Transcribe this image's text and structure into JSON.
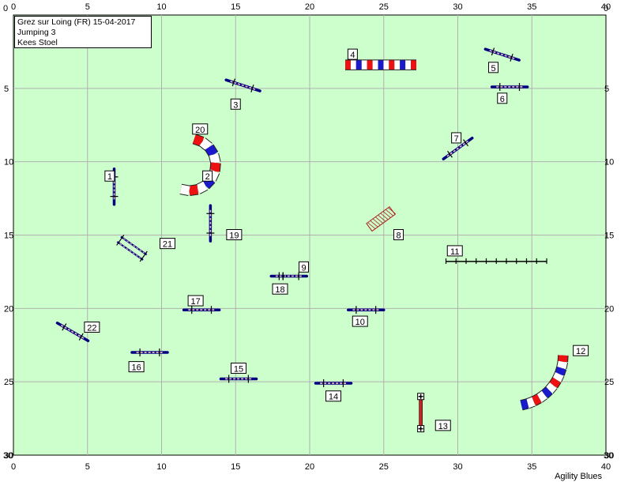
{
  "header": {
    "lines": [
      "Grez sur Loing (FR) 15-04-2017",
      "Jumping 3",
      "Kees Stoel"
    ]
  },
  "footer": {
    "brand": "Agility Blues"
  },
  "axes": {
    "x_ticks": [
      "0",
      "5",
      "10",
      "15",
      "20",
      "25",
      "30",
      "35",
      "40"
    ],
    "y_ticks": [
      "",
      "5",
      "10",
      "15",
      "20",
      "25",
      "30"
    ],
    "x_range": [
      0,
      40
    ],
    "y_range": [
      0,
      30
    ],
    "grid": true
  },
  "colors": {
    "field": "#ccffcc",
    "grid": "#b0b0b0",
    "bar": "#000080",
    "tunnel_red": "#ee1111",
    "tunnel_white": "#ffffff",
    "tunnel_blue": "#1a1acc",
    "pole_red": "#cc2222"
  },
  "obstacles": [
    {
      "num": "1",
      "type": "jump",
      "x": 6.8,
      "y": 11.7,
      "angle": 90,
      "length": 2.4,
      "label": [
        6.5,
        11.0
      ]
    },
    {
      "num": "2",
      "type": "tunnel-end",
      "x": 13,
      "y": 11.3,
      "label": [
        13.1,
        11.0
      ]
    },
    {
      "num": "3",
      "type": "jump",
      "x": 15.5,
      "y": 4.8,
      "angle": 18,
      "length": 2.4,
      "label": [
        15.0,
        6.1
      ]
    },
    {
      "num": "4",
      "type": "tunnel",
      "x1": 22.4,
      "y1": 3.4,
      "x2": 27.2,
      "y2": 3.4,
      "label": [
        22.9,
        2.7
      ]
    },
    {
      "num": "5",
      "type": "jump",
      "x": 33,
      "y": 2.7,
      "angle": 18,
      "length": 2.4,
      "label": [
        32.4,
        3.6
      ]
    },
    {
      "num": "6",
      "type": "jump",
      "x": 33.5,
      "y": 4.9,
      "angle": 0,
      "length": 2.4,
      "label": [
        33.0,
        5.7
      ]
    },
    {
      "num": "7",
      "type": "jump",
      "x": 30,
      "y": 9.1,
      "angle": -36,
      "length": 2.4,
      "label": [
        29.9,
        8.4
      ]
    },
    {
      "num": "8",
      "type": "tire",
      "x": 24.8,
      "y": 13.9,
      "angle": -36,
      "label": [
        26.0,
        15.0
      ]
    },
    {
      "num": "9",
      "type": "jump",
      "x": 18.6,
      "y": 17.8,
      "angle": 0,
      "length": 2.4,
      "label": [
        19.6,
        17.2
      ]
    },
    {
      "num": "10",
      "type": "jump",
      "x": 23.8,
      "y": 20.1,
      "angle": 0,
      "length": 2.4,
      "label": [
        23.4,
        20.9
      ]
    },
    {
      "num": "11",
      "type": "longjump",
      "x1": 29.2,
      "y1": 16.8,
      "x2": 36,
      "y2": 16.8,
      "label": [
        29.8,
        16.1
      ]
    },
    {
      "num": "12",
      "type": "tunnel-curve",
      "label": [
        38.3,
        22.9
      ]
    },
    {
      "num": "13",
      "type": "wall",
      "x1": 27.5,
      "y1": 26.0,
      "x2": 27.5,
      "y2": 28.2,
      "label": [
        29.0,
        28.0
      ]
    },
    {
      "num": "14",
      "type": "jump",
      "x": 21.6,
      "y": 25.1,
      "angle": 0,
      "length": 2.4,
      "label": [
        21.6,
        26.0
      ]
    },
    {
      "num": "15",
      "type": "jump",
      "x": 15.2,
      "y": 24.8,
      "angle": 0,
      "length": 2.4,
      "label": [
        15.2,
        24.1
      ]
    },
    {
      "num": "16",
      "type": "jump",
      "x": 9.2,
      "y": 23.0,
      "angle": 0,
      "length": 2.4,
      "label": [
        8.3,
        24.0
      ]
    },
    {
      "num": "17",
      "type": "jump",
      "x": 12.7,
      "y": 20.1,
      "angle": 0,
      "length": 2.4,
      "label": [
        12.3,
        19.5
      ]
    },
    {
      "num": "18",
      "type": "jump",
      "x": 18.2,
      "y": 17.8,
      "angle": 0,
      "length": 0.01,
      "label": [
        18.0,
        18.7
      ]
    },
    {
      "num": "19",
      "type": "jump",
      "x": 13.3,
      "y": 14.2,
      "angle": 90,
      "length": 2.4,
      "label": [
        14.9,
        15.0
      ]
    },
    {
      "num": "20",
      "type": "tunnel-start",
      "x": 12.2,
      "y": 8.5,
      "label": [
        12.6,
        7.8
      ]
    },
    {
      "num": "21",
      "type": "double",
      "x": 8.0,
      "y": 15.9,
      "angle": 35,
      "label": [
        10.4,
        15.6
      ]
    },
    {
      "num": "22",
      "type": "jump",
      "x": 4.0,
      "y": 21.6,
      "angle": 30,
      "length": 2.4,
      "label": [
        5.3,
        21.3
      ]
    }
  ]
}
